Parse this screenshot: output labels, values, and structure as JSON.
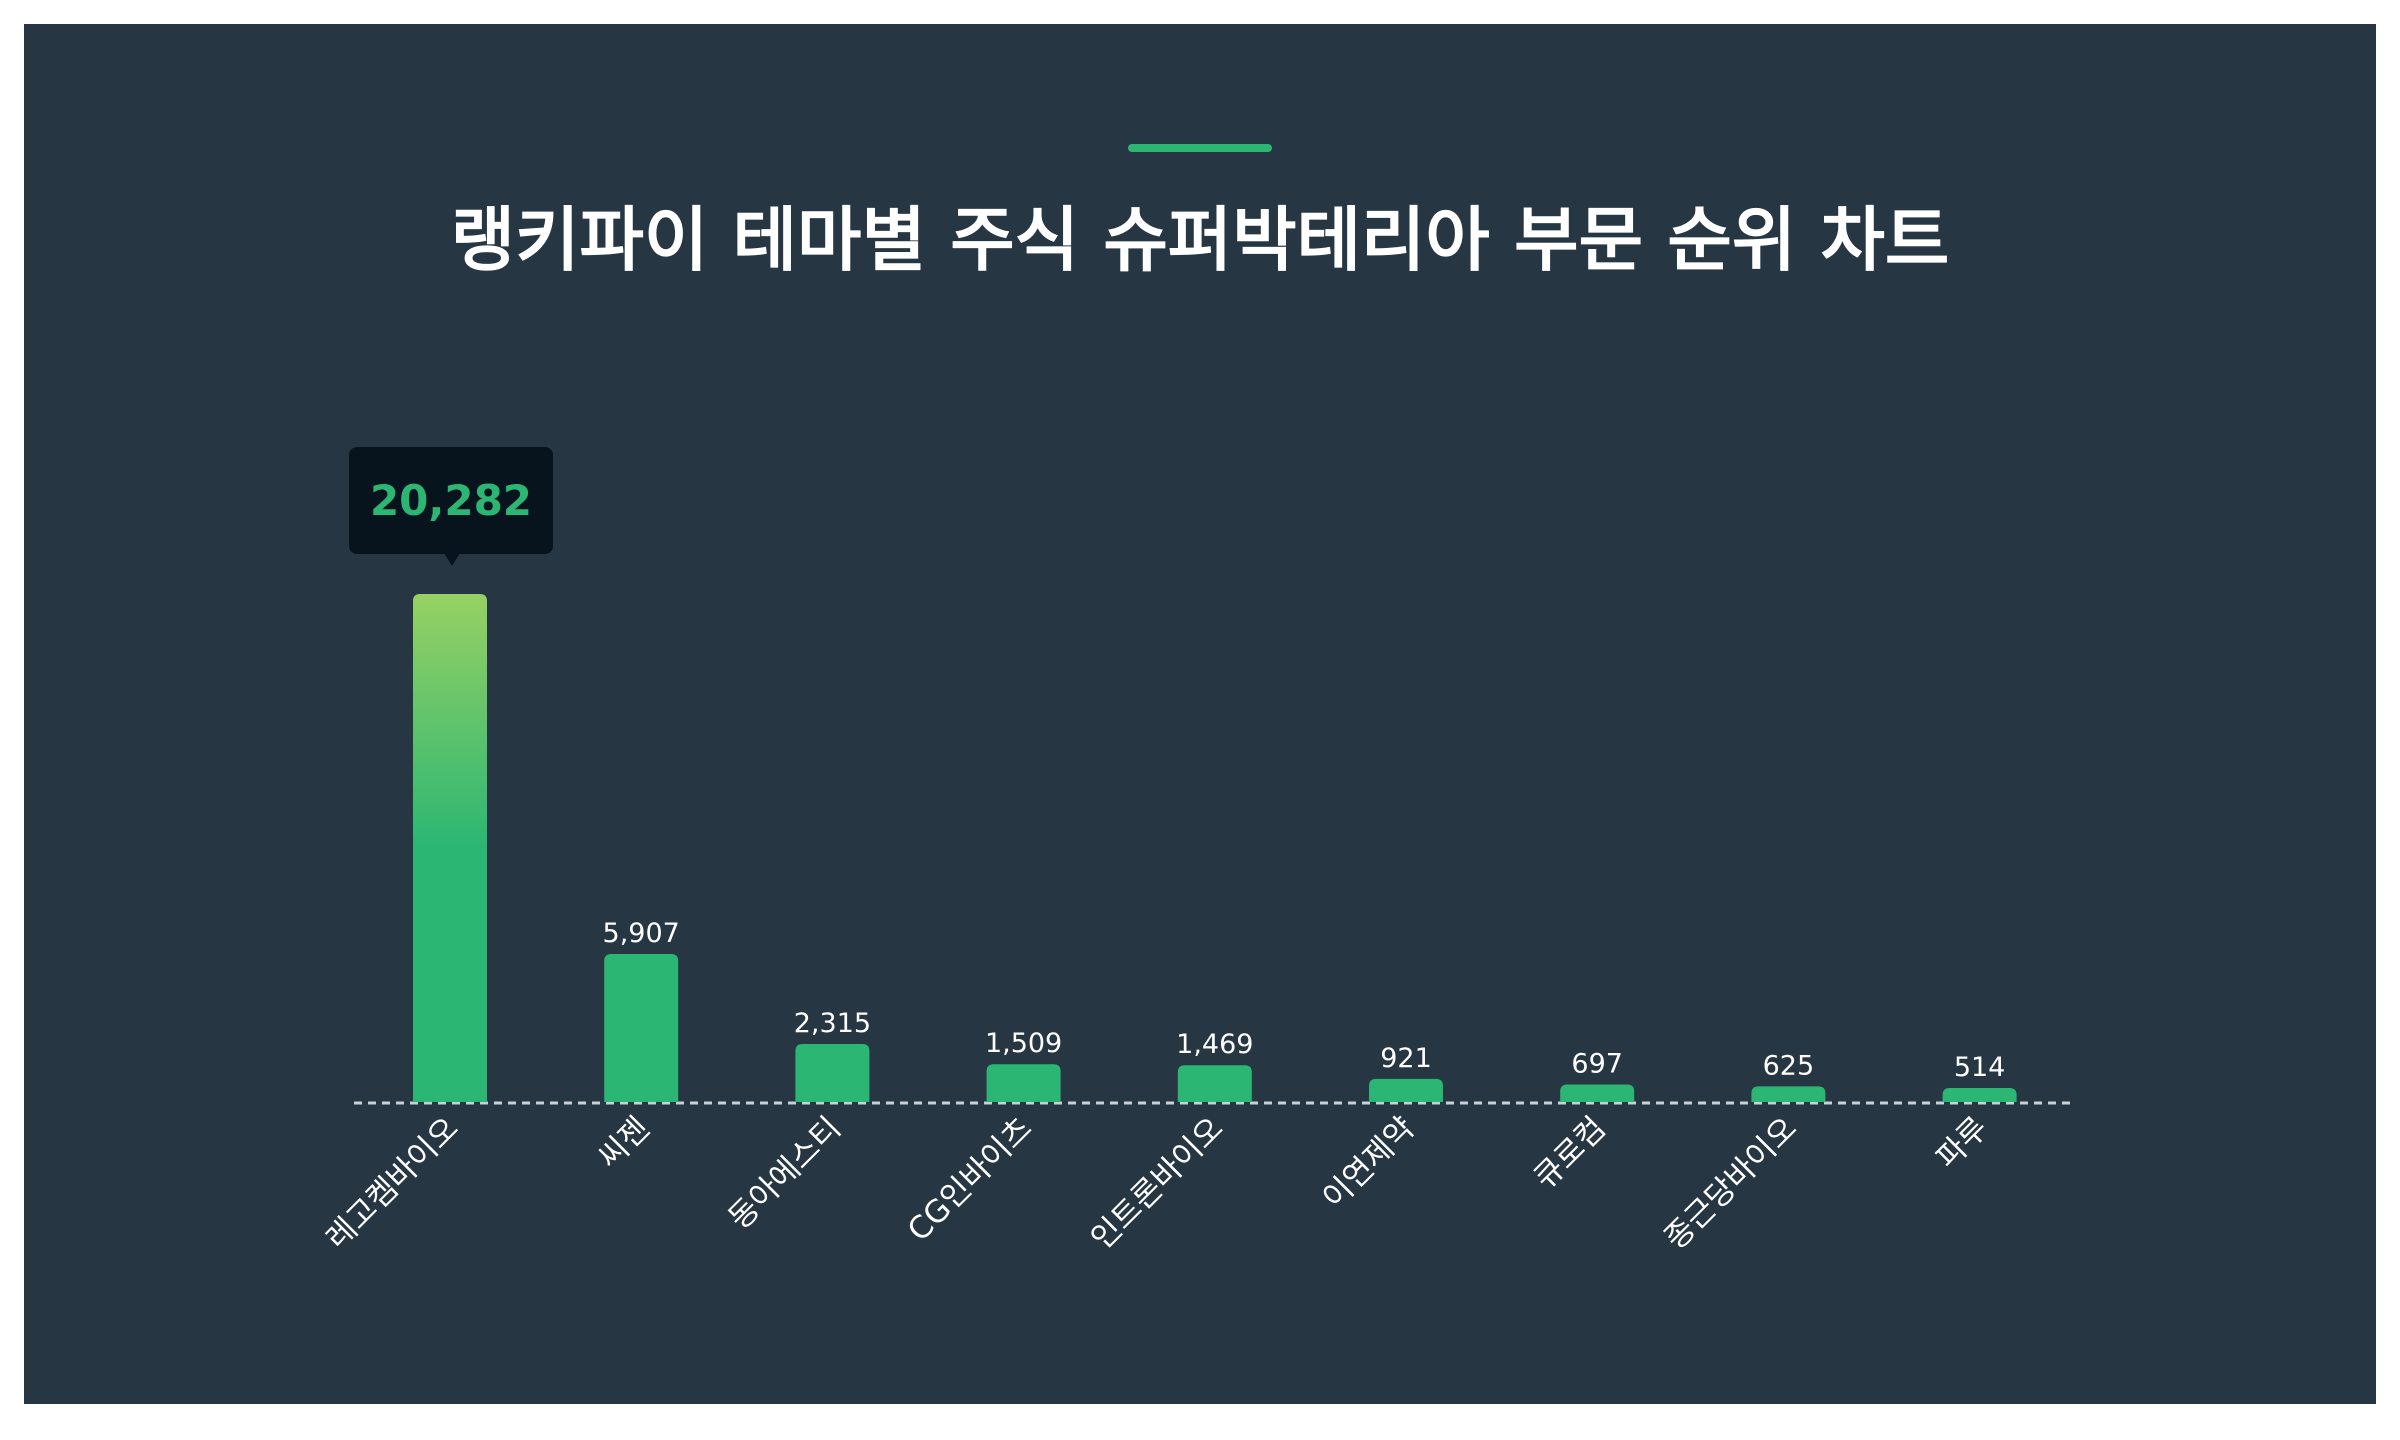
{
  "title": "랭키파이 테마별 주식 슈퍼박테리아 부문 순위 차트",
  "colors": {
    "background": "#263642",
    "bar": "#2bb673",
    "bar_top_highlight": "#97d163",
    "accent": "#2bb673",
    "tooltip_bg": "#07131d"
  },
  "tooltip": {
    "value": "20,282"
  },
  "chart_data": {
    "type": "bar",
    "title": "랭키파이 테마별 주식 슈퍼박테리아 부문 순위 차트",
    "xlabel": "",
    "ylabel": "",
    "categories": [
      "레고켐바이오",
      "씨젠",
      "동아에스티",
      "CG인바이츠",
      "인트론바이오",
      "이연제약",
      "큐로컴",
      "종근당바이오",
      "파루"
    ],
    "values": [
      20282,
      5907,
      2315,
      1509,
      1469,
      921,
      697,
      625,
      514
    ],
    "value_labels": [
      "20,282",
      "5,907",
      "2,315",
      "1,509",
      "1,469",
      "921",
      "697",
      "625",
      "514"
    ],
    "ylim": [
      0,
      20282
    ],
    "grid": false,
    "legend": "none",
    "highlighted_index": 0
  }
}
